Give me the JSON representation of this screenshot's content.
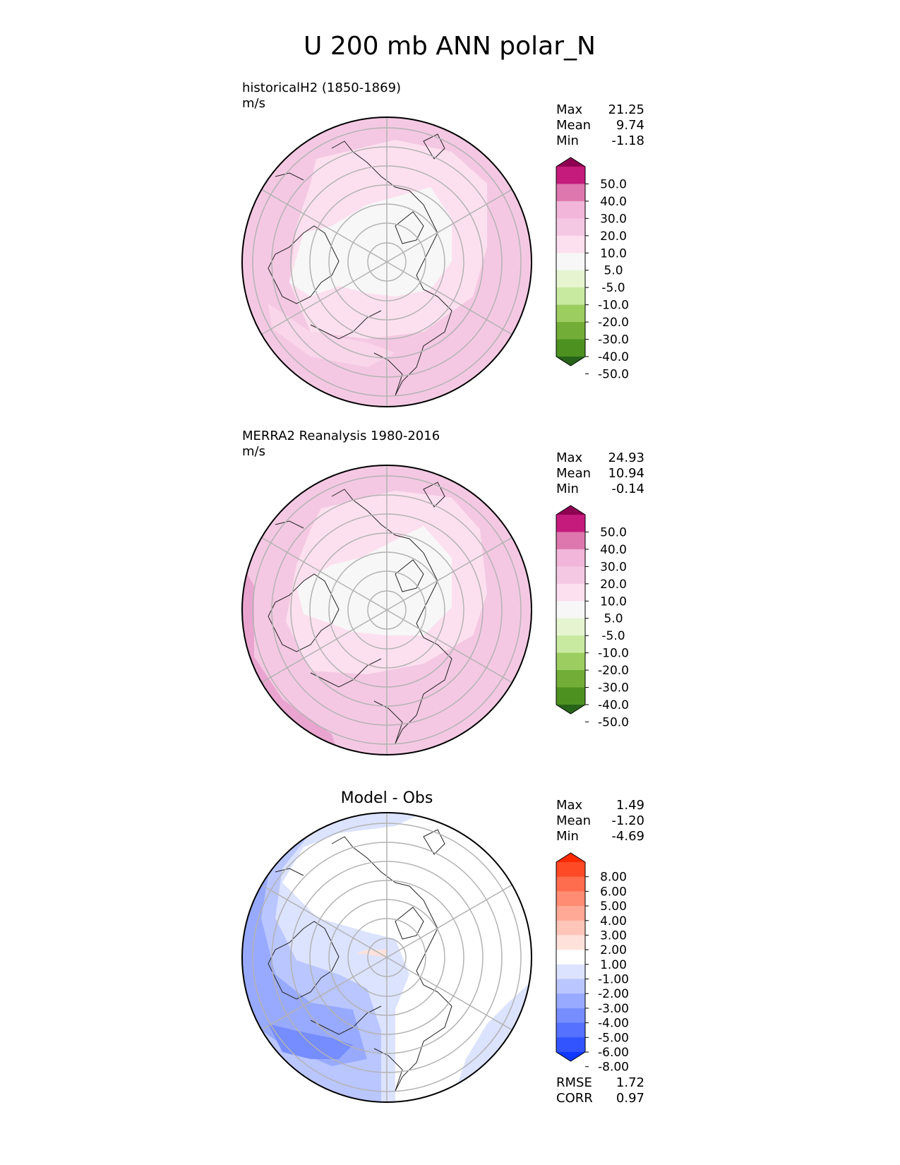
{
  "title": "U 200 mb ANN polar_N",
  "stat_labels": {
    "max": "Max",
    "mean": "Mean",
    "min": "Min",
    "rmse": "RMSE",
    "corr": "CORR"
  },
  "panels": [
    {
      "id": "test",
      "label": "historicalH2 (1850-1869)",
      "units": "m/s",
      "center_title": "",
      "stats": {
        "max": "21.25",
        "mean": "9.74",
        "min": "-1.18"
      },
      "colorbar": {
        "ticks": [
          "50.0",
          "40.0",
          "30.0",
          "20.0",
          "10.0",
          "5.0",
          "-5.0",
          "-10.0",
          "-20.0",
          "-30.0",
          "-40.0",
          "-50.0"
        ],
        "colors": [
          "#8e0152",
          "#c51b7d",
          "#de77ae",
          "#f1b6da",
          "#f4c8e3",
          "#fde0ef",
          "#f7f7f7",
          "#e6f5d0",
          "#c7e9a0",
          "#9ccd60",
          "#72ad37",
          "#4d9221",
          "#276419"
        ]
      }
    },
    {
      "id": "reference",
      "label": "MERRA2 Reanalysis 1980-2016",
      "units": "m/s",
      "center_title": "",
      "stats": {
        "max": "24.93",
        "mean": "10.94",
        "min": "-0.14"
      },
      "colorbar": {
        "ticks": [
          "50.0",
          "40.0",
          "30.0",
          "20.0",
          "10.0",
          "5.0",
          "-5.0",
          "-10.0",
          "-20.0",
          "-30.0",
          "-40.0",
          "-50.0"
        ],
        "colors": [
          "#8e0152",
          "#c51b7d",
          "#de77ae",
          "#f1b6da",
          "#f4c8e3",
          "#fde0ef",
          "#f7f7f7",
          "#e6f5d0",
          "#c7e9a0",
          "#9ccd60",
          "#72ad37",
          "#4d9221",
          "#276419"
        ]
      }
    },
    {
      "id": "diff",
      "label": "",
      "units": "",
      "center_title": "Model - Obs",
      "stats": {
        "max": "1.49",
        "mean": "-1.20",
        "min": "-4.69"
      },
      "metrics": {
        "rmse": "1.72",
        "corr": "0.97"
      },
      "colorbar": {
        "ticks": [
          "8.00",
          "6.00",
          "5.00",
          "4.00",
          "3.00",
          "2.00",
          "1.00",
          "-1.00",
          "-2.00",
          "-3.00",
          "-4.00",
          "-5.00",
          "-6.00",
          "-8.00"
        ],
        "colors": [
          "#ff2a00",
          "#ff4a26",
          "#ff6d4f",
          "#ff8c73",
          "#ffa996",
          "#ffc5b9",
          "#ffe1db",
          "#ffffff",
          "#dce3ff",
          "#bac6ff",
          "#98aaff",
          "#768dff",
          "#5471ff",
          "#3254ff",
          "#1037ff"
        ]
      }
    }
  ]
}
